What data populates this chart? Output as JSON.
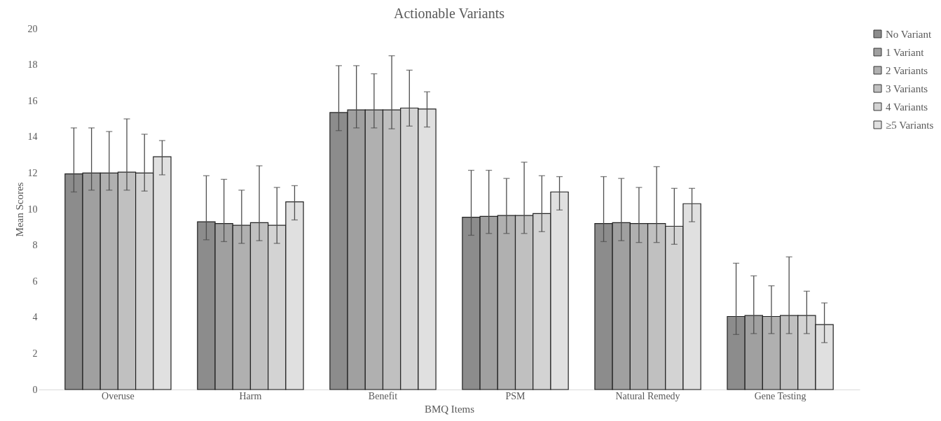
{
  "chart_data": {
    "type": "bar",
    "title": "Actionable Variants",
    "xlabel": "BMQ Items",
    "ylabel": "Mean Scores",
    "categories": [
      "Overuse",
      "Harm",
      "Benefit",
      "PSM",
      "Natural Remedy",
      "Gene Testing"
    ],
    "ylim": [
      0,
      20
    ],
    "yticks": [
      0,
      2,
      4,
      6,
      8,
      10,
      12,
      14,
      16,
      18,
      20
    ],
    "grid": false,
    "legend": "right",
    "series": [
      {
        "name": "No Variant",
        "color": "#8c8c8c",
        "values": [
          11.95,
          9.3,
          15.35,
          9.55,
          9.2,
          4.05
        ],
        "errors": [
          [
            10.95,
            14.5
          ],
          [
            8.3,
            11.85
          ],
          [
            14.35,
            17.95
          ],
          [
            8.55,
            12.15
          ],
          [
            8.2,
            11.8
          ],
          [
            3.05,
            7.0
          ]
        ]
      },
      {
        "name": "1 Variant",
        "color": "#a0a0a0",
        "values": [
          12.0,
          9.2,
          15.5,
          9.6,
          9.25,
          4.1
        ],
        "errors": [
          [
            11.05,
            14.5
          ],
          [
            8.2,
            11.65
          ],
          [
            14.5,
            17.95
          ],
          [
            8.65,
            12.15
          ],
          [
            8.25,
            11.7
          ],
          [
            3.1,
            6.3
          ]
        ]
      },
      {
        "name": "2 Variants",
        "color": "#b0b0b0",
        "values": [
          12.0,
          9.1,
          15.5,
          9.65,
          9.2,
          4.05
        ],
        "errors": [
          [
            11.05,
            14.3
          ],
          [
            8.1,
            11.05
          ],
          [
            14.5,
            17.5
          ],
          [
            8.65,
            11.7
          ],
          [
            8.15,
            11.2
          ],
          [
            3.1,
            5.75
          ]
        ]
      },
      {
        "name": "3 Variants",
        "color": "#c0c0c0",
        "values": [
          12.05,
          9.25,
          15.5,
          9.65,
          9.2,
          4.1
        ],
        "errors": [
          [
            11.05,
            15.0
          ],
          [
            8.25,
            12.4
          ],
          [
            14.45,
            18.5
          ],
          [
            8.65,
            12.6
          ],
          [
            8.15,
            12.35
          ],
          [
            3.1,
            7.35
          ]
        ]
      },
      {
        "name": "4 Variants",
        "color": "#d3d3d3",
        "values": [
          12.0,
          9.1,
          15.6,
          9.75,
          9.05,
          4.1
        ],
        "errors": [
          [
            11.0,
            14.15
          ],
          [
            8.1,
            11.2
          ],
          [
            14.6,
            17.7
          ],
          [
            8.75,
            11.85
          ],
          [
            8.05,
            11.15
          ],
          [
            3.1,
            5.45
          ]
        ]
      },
      {
        "name": "≥5 Variants",
        "color": "#e0e0e0",
        "values": [
          12.9,
          10.4,
          15.55,
          10.95,
          10.3,
          3.6
        ],
        "errors": [
          [
            11.9,
            13.8
          ],
          [
            9.4,
            11.3
          ],
          [
            14.55,
            16.5
          ],
          [
            9.95,
            11.8
          ],
          [
            9.3,
            11.15
          ],
          [
            2.6,
            4.8
          ]
        ]
      }
    ]
  }
}
